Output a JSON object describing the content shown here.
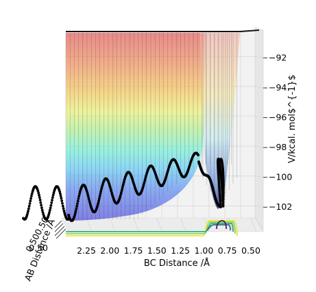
{
  "chart_data": {
    "type": "surface3d",
    "zlabel": "V/kcal. mol$^{-1}$",
    "xlabel": "BC Distance /Å",
    "ylabel": "AB Distance /Å",
    "z_ticks": [
      "−92",
      "−94",
      "−96",
      "−98",
      "−100",
      "−102"
    ],
    "z_tick_values": [
      -92,
      -94,
      -96,
      -98,
      -100,
      -102
    ],
    "zlim": [
      -103,
      -90.5
    ],
    "x_ticks": [
      "2.25",
      "2.00",
      "1.75",
      "1.50",
      "1.25",
      "1.00",
      "0.75",
      "0.50"
    ],
    "x_tick_values": [
      2.25,
      2.0,
      1.75,
      1.5,
      1.25,
      1.0,
      0.75,
      0.5
    ],
    "xlim": [
      0.4,
      2.5
    ],
    "y_ticks_visible": [
      "0.50"
    ],
    "trajectory": {
      "color": "#000000",
      "description_points": [
        {
          "bc": 2.5,
          "z": -101.0
        },
        {
          "bc": 2.2,
          "z": -100.6
        },
        {
          "bc": 1.95,
          "z": -100.4
        },
        {
          "bc": 1.7,
          "z": -100.2
        },
        {
          "bc": 1.45,
          "z": -100.0
        },
        {
          "bc": 1.2,
          "z": -99.3
        },
        {
          "bc": 1.0,
          "z": -98.5
        },
        {
          "bc": 0.85,
          "z": -99.5
        },
        {
          "bc": 0.74,
          "z": -102.0
        }
      ]
    },
    "colormap_surface": "jet",
    "contour_colormap": "viridis",
    "grid": true
  }
}
